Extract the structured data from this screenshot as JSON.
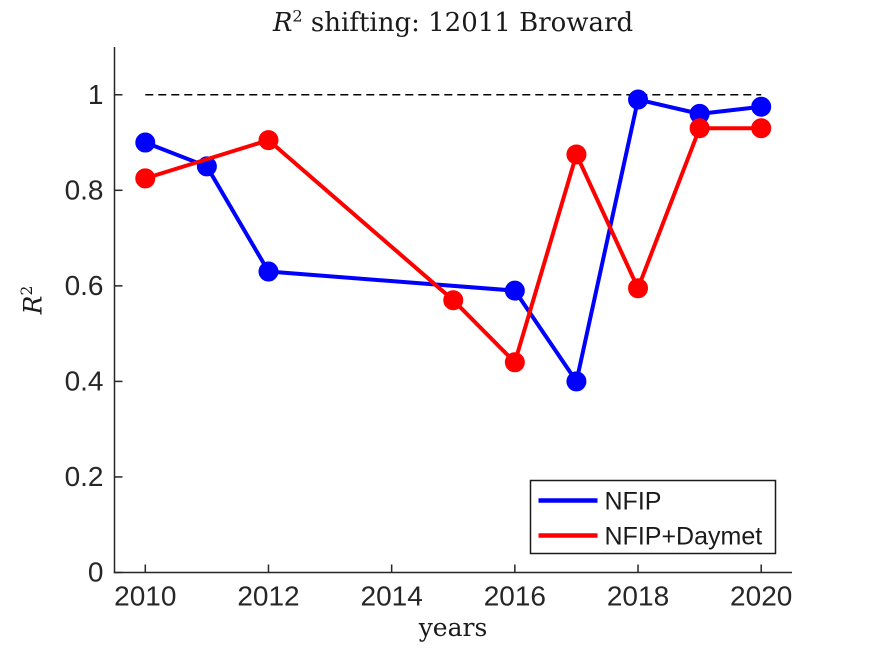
{
  "window": {
    "background": "#ffffff"
  },
  "title": {
    "variable": "R",
    "superscript": "2",
    "rest": " shifting: 12011 Broward"
  },
  "axes": {
    "xlabel": "years",
    "ylabel": {
      "variable": "R",
      "superscript": "2"
    },
    "x_tick_labels": [
      "2010",
      "2012",
      "2014",
      "2016",
      "2018",
      "2020"
    ],
    "y_tick_labels": [
      "0",
      "0.2",
      "0.4",
      "0.6",
      "0.8",
      "1"
    ],
    "axis_color": "#262626",
    "tick_label_color": "#262626"
  },
  "chart_data": {
    "type": "line",
    "title": "R^2 shifting: 12011 Broward",
    "xlabel": "years",
    "ylabel": "R^2",
    "xlim": [
      2009.5,
      2020.5
    ],
    "ylim": [
      0,
      1.1
    ],
    "x_ticks": [
      2010,
      2012,
      2014,
      2016,
      2018,
      2020
    ],
    "y_ticks": [
      0,
      0.2,
      0.4,
      0.6,
      0.8,
      1
    ],
    "grid": false,
    "legend_position": "lower right",
    "series": [
      {
        "name": "NFIP",
        "color": "#0000ff",
        "x": [
          2010,
          2011,
          2012,
          2016,
          2017,
          2018,
          2019,
          2020
        ],
        "y": [
          0.9,
          0.85,
          0.63,
          0.59,
          0.4,
          0.99,
          0.96,
          0.975
        ]
      },
      {
        "name": "NFIP+Daymet",
        "color": "#ff0000",
        "x": [
          2010,
          2012,
          2015,
          2016,
          2017,
          2018,
          2019,
          2020
        ],
        "y": [
          0.825,
          0.905,
          0.57,
          0.44,
          0.875,
          0.595,
          0.93,
          0.93
        ]
      }
    ],
    "reference_line": {
      "y": 1.0,
      "x_start": 2010,
      "x_end": 2020,
      "style": "dashed",
      "color": "#000000"
    }
  },
  "legend": {
    "border_color": "#1a1a1a",
    "background": "#ffffff"
  }
}
